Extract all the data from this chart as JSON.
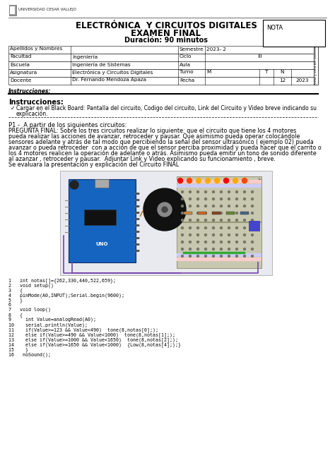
{
  "title1": "ELECTRÓNICA  Y CIRCUITOS DIGITALES",
  "title2": "EXAMEN FINAL",
  "title3": "Duración: 90 minutos",
  "nota_label": "NOTA",
  "instrucciones_header": "Instrucciones:",
  "instruccion_bullet": "Cargar en el Black Board: Pantalla del circuito, Codigo del circuito, Link del Circuito y Video breve indicando su",
  "instruccion_bullet2": "explicación.",
  "p1_header": "P1 -  A partir de los siguientes circuitos:",
  "pregunta_lines": [
    "PREGUNTA FINAL: Sobre los tres circuitos realizar lo siguiente: que el circuito que tiene los 4 motores",
    "pueda realizar las acciones de avanzar, retroceder y pausar. Que asimismo pueda operar colocándole",
    "sensores adelante y atrás de tal modo que percibiendo la señal del sensor ultrasónico ( ejemplo 02) pueda",
    "avanzar o pueda retroceder  con a acción de que el sensor perciba proximidad y pueda hacer que el carrito o",
    "los 4 motores realicen la operación de adelante o atrás. Asimismo pueda emitir un tono de sonido diferente",
    "al azanzar , retroceder y pausar.  Adjuntar Link y Video explicando su funcionamiento , breve.",
    "Se evaluara la presentación y explicación del Circuito FINAL"
  ],
  "code_lines": [
    "1   int notas[]={262,330,440,522,659};",
    "2   void setup()",
    "3   {",
    "4   pinMode(A0,INPUT);Serial.begin(9600);",
    "5   }",
    "6",
    "7   void loop()",
    "8   {",
    "9     int Value=analogRead(A0);",
    "10    serial.println(Value);",
    "11    if(Value>=123 && Value<490)  tone(8,notas[0];);",
    "12    else if(Value>=490 && Value<1000)  tone(8,notas[1];);",
    "13    else if(Value>=1000 && Value<1650)  tone(8,notas[2];);",
    "14    else if(Value>=1650 && Value<1000)  {Low(8,notas[4];);}",
    "15    }",
    "16   noSound();"
  ],
  "bg_color": "#ffffff",
  "logo_text": "UNIVERSIDAD CESAR VALLEJO",
  "table_rows": [
    {
      "col1": "Apellidos y Nombres",
      "col2": "",
      "col3": "Semestre",
      "col4": "2023- 2",
      "extras": []
    },
    {
      "col1": "Facultad",
      "col2": "Ingeniería",
      "col3": "Ciclo",
      "col4": "III",
      "extras": []
    },
    {
      "col1": "Escuela",
      "col2": "Ingeniería de Sistemas",
      "col3": "Aula",
      "col4": "",
      "extras": []
    },
    {
      "col1": "Asignatura",
      "col2": "Electrónica y Circuitos Digitales",
      "col3": "Turno",
      "col4": "M",
      "extras": [
        "T",
        "N"
      ]
    },
    {
      "col1": "Docente",
      "col2": "Dr. Fernando Mendoza Apaza",
      "col3": "Fecha",
      "col4": "",
      "extras": [
        "12",
        "2023"
      ]
    }
  ]
}
